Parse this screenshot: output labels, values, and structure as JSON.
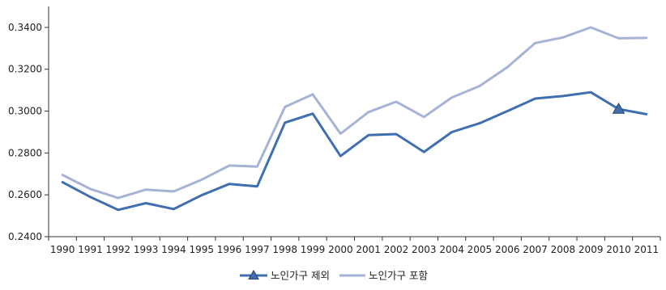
{
  "chart_data": {
    "type": "line",
    "title": "",
    "xlabel": "",
    "ylabel": "",
    "categories": [
      "1990",
      "1991",
      "1992",
      "1993",
      "1994",
      "1995",
      "1996",
      "1997",
      "1998",
      "1999",
      "2000",
      "2001",
      "2002",
      "2003",
      "2004",
      "2005",
      "2006",
      "2007",
      "2008",
      "2009",
      "2010",
      "2011"
    ],
    "ylim": [
      0.24,
      0.35
    ],
    "yticks": [
      "0.2400",
      "0.2600",
      "0.2800",
      "0.3000",
      "0.3200",
      "0.3400"
    ],
    "grid": false,
    "legend_position": "bottom",
    "series": [
      {
        "name": "노인가구 제외",
        "color": "#3f6fb0",
        "marker": "triangle",
        "marker_at": "2010",
        "values": [
          0.266,
          0.259,
          0.2528,
          0.256,
          0.2532,
          0.2598,
          0.2652,
          0.264,
          0.2945,
          0.2988,
          0.2785,
          0.2885,
          0.289,
          0.2805,
          0.29,
          0.2942,
          0.3,
          0.306,
          0.3072,
          0.309,
          0.301,
          0.2985
        ]
      },
      {
        "name": "노인가구 포함",
        "color": "#a6b3d6",
        "marker": "none",
        "values": [
          0.2695,
          0.2628,
          0.2585,
          0.2625,
          0.2616,
          0.2672,
          0.274,
          0.2735,
          0.302,
          0.308,
          0.2892,
          0.2995,
          0.3045,
          0.2972,
          0.3065,
          0.312,
          0.321,
          0.3325,
          0.3352,
          0.34,
          0.3348,
          0.335
        ]
      }
    ]
  }
}
